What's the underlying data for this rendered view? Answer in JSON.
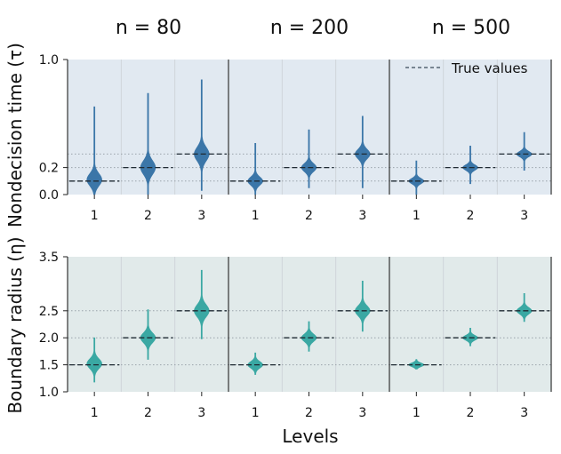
{
  "chart_data": {
    "type": "violin",
    "col_titles": [
      "n = 80",
      "n = 200",
      "n = 500"
    ],
    "xlabel": "Levels",
    "x_categories": [
      "1",
      "2",
      "3"
    ],
    "legend": {
      "label": "True values",
      "placement": "top-right"
    },
    "rows": [
      {
        "ylabel": "Nondecision time (τ)",
        "ylim": [
          0.0,
          1.0
        ],
        "yticks": [
          "0.0",
          "0.2",
          "1.0"
        ],
        "ytick_values": [
          0.0,
          0.2,
          1.0
        ],
        "true_values": [
          0.1,
          0.2,
          0.3
        ],
        "color": "#3b76a8",
        "background": "#e1e9f1",
        "panels": [
          {
            "n": "n = 80",
            "violins": [
              {
                "level": "1",
                "median": 0.11,
                "min": 0.0,
                "max": 0.65,
                "spread": 0.045
              },
              {
                "level": "2",
                "median": 0.2,
                "min": 0.0,
                "max": 0.75,
                "spread": 0.05
              },
              {
                "level": "3",
                "median": 0.3,
                "min": 0.03,
                "max": 0.85,
                "spread": 0.05
              }
            ]
          },
          {
            "n": "n = 200",
            "violins": [
              {
                "level": "1",
                "median": 0.1,
                "min": 0.0,
                "max": 0.38,
                "spread": 0.03
              },
              {
                "level": "2",
                "median": 0.2,
                "min": 0.05,
                "max": 0.48,
                "spread": 0.03
              },
              {
                "level": "3",
                "median": 0.3,
                "min": 0.05,
                "max": 0.58,
                "spread": 0.035
              }
            ]
          },
          {
            "n": "n = 500",
            "violins": [
              {
                "level": "1",
                "median": 0.1,
                "min": 0.0,
                "max": 0.25,
                "spread": 0.02
              },
              {
                "level": "2",
                "median": 0.2,
                "min": 0.08,
                "max": 0.36,
                "spread": 0.02
              },
              {
                "level": "3",
                "median": 0.3,
                "min": 0.18,
                "max": 0.46,
                "spread": 0.02
              }
            ]
          }
        ]
      },
      {
        "ylabel": "Boundary radius (η)",
        "ylim": [
          1.0,
          3.5
        ],
        "yticks": [
          "1.0",
          "1.5",
          "2.0",
          "2.5",
          "3.5"
        ],
        "ytick_values": [
          1.0,
          1.5,
          2.0,
          2.5,
          3.5
        ],
        "true_values": [
          1.5,
          2.0,
          2.5
        ],
        "color": "#3aa8a3",
        "background": "#e1eaea",
        "panels": [
          {
            "n": "n = 80",
            "violins": [
              {
                "level": "1",
                "median": 1.52,
                "min": 1.18,
                "max": 2.0,
                "spread": 0.09
              },
              {
                "level": "2",
                "median": 2.0,
                "min": 1.6,
                "max": 2.52,
                "spread": 0.09
              },
              {
                "level": "3",
                "median": 2.5,
                "min": 1.98,
                "max": 3.25,
                "spread": 0.11
              }
            ]
          },
          {
            "n": "n = 200",
            "violins": [
              {
                "level": "1",
                "median": 1.5,
                "min": 1.32,
                "max": 1.72,
                "spread": 0.06
              },
              {
                "level": "2",
                "median": 2.0,
                "min": 1.75,
                "max": 2.3,
                "spread": 0.07
              },
              {
                "level": "3",
                "median": 2.5,
                "min": 2.12,
                "max": 3.05,
                "spread": 0.09
              }
            ]
          },
          {
            "n": "n = 500",
            "violins": [
              {
                "level": "1",
                "median": 1.5,
                "min": 1.42,
                "max": 1.6,
                "spread": 0.035
              },
              {
                "level": "2",
                "median": 2.0,
                "min": 1.85,
                "max": 2.18,
                "spread": 0.045
              },
              {
                "level": "3",
                "median": 2.5,
                "min": 2.3,
                "max": 2.82,
                "spread": 0.06
              }
            ]
          }
        ]
      }
    ]
  }
}
